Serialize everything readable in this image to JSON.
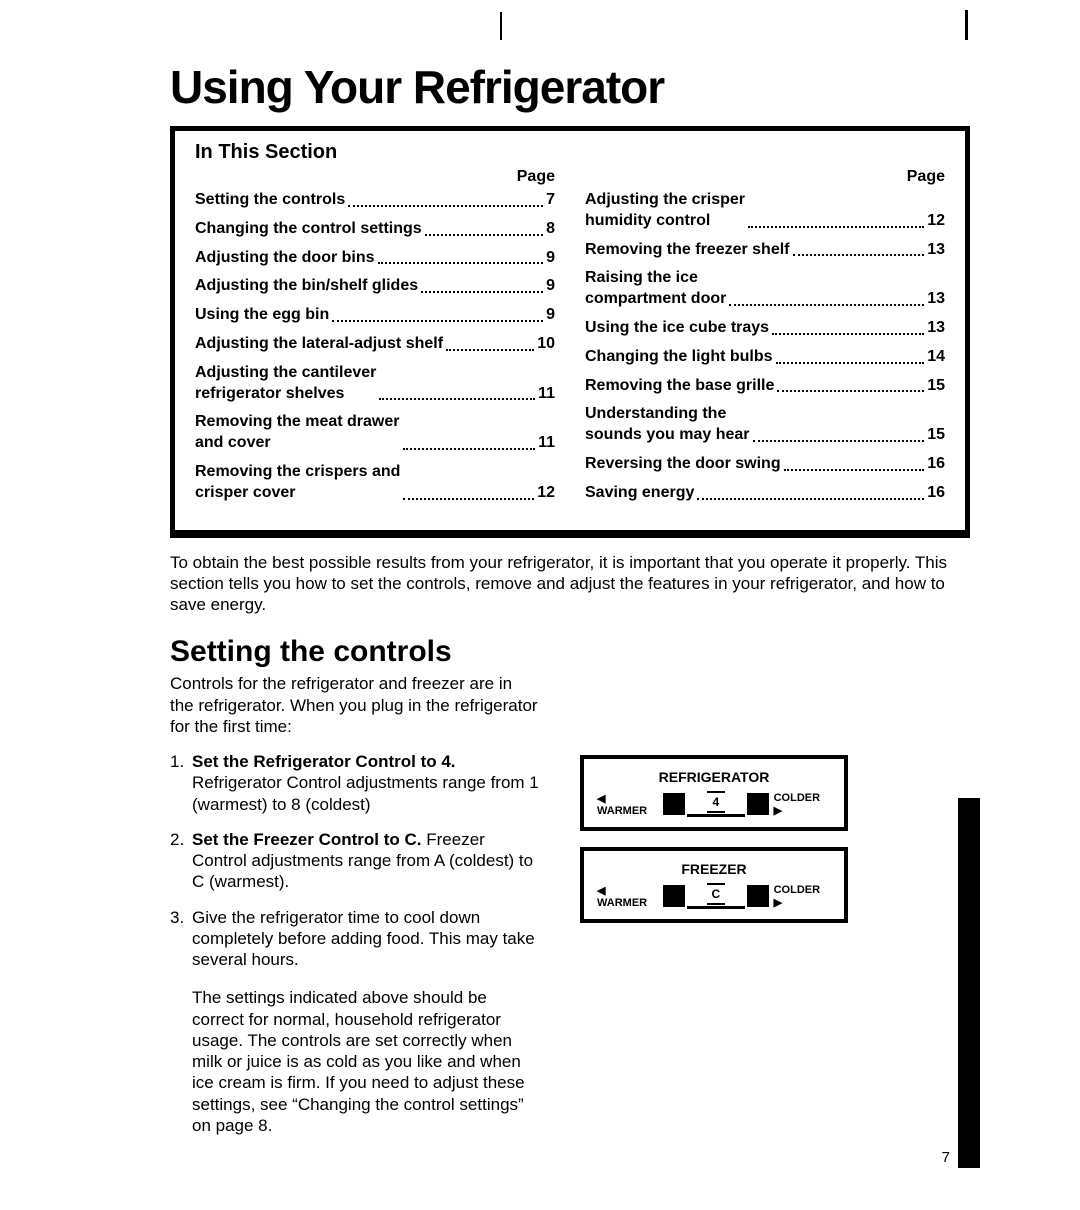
{
  "title": "Using Your Refrigerator",
  "toc": {
    "heading": "In This Section",
    "page_label": "Page",
    "left": [
      {
        "label": "Setting the controls",
        "page": "7"
      },
      {
        "label": "Changing the control settings",
        "page": "8"
      },
      {
        "label": "Adjusting the door bins",
        "page": "9"
      },
      {
        "label": "Adjusting the bin/shelf glides",
        "page": "9"
      },
      {
        "label": "Using the egg bin",
        "page": "9"
      },
      {
        "label": "Adjusting the lateral-adjust shelf",
        "page": "10"
      },
      {
        "label": "Adjusting the cantilever\nrefrigerator shelves",
        "page": "11"
      },
      {
        "label": "Removing the meat drawer\nand cover",
        "page": "11"
      },
      {
        "label": "Removing the crispers and\ncrisper cover",
        "page": "12"
      }
    ],
    "right": [
      {
        "label": "Adjusting the crisper\nhumidity control",
        "page": "12"
      },
      {
        "label": "Removing the freezer shelf",
        "page": "13"
      },
      {
        "label": "Raising the ice\ncompartment door",
        "page": "13"
      },
      {
        "label": "Using the ice cube trays",
        "page": "13"
      },
      {
        "label": "Changing the light bulbs",
        "page": "14"
      },
      {
        "label": "Removing the base grille",
        "page": "15"
      },
      {
        "label": "Understanding the\nsounds you may hear",
        "page": "15"
      },
      {
        "label": "Reversing the door swing",
        "page": "16"
      },
      {
        "label": "Saving energy",
        "page": "16"
      }
    ]
  },
  "intro": "To obtain the best possible results from your refrigerator, it is important that you operate it properly. This section tells you how to set the controls, remove and adjust the features in your refrigerator, and how to save energy.",
  "setting": {
    "heading": "Setting the controls",
    "lead": "Controls for the refrigerator and freezer are in the refrigerator. When you plug in the refrigerator for the first time:",
    "step1_num": "1.",
    "step1_title": "Set the Refrigerator Control to 4.",
    "step1_body": "Refrigerator Control adjustments range from 1 (warmest) to 8 (coldest)",
    "step2_num": "2.",
    "step2_title": "Set the Freezer Control to C.",
    "step2_body": "Freezer Control adjustments range from A (coldest) to C (warmest).",
    "step3_num": "3.",
    "step3_body": "Give the refrigerator time to cool down completely before adding food. This may take several hours.",
    "step3_cont": "The settings indicated above should be correct for normal, household refrigerator usage. The controls are set correctly when milk or juice is as cold as you like and when ice cream is firm. If you need to adjust these settings, see “Changing the control settings” on page 8."
  },
  "diagram": {
    "refrigerator": {
      "title": "REFRIGERATOR",
      "warmer": "◀ WARMER",
      "value": "4",
      "colder": "COLDER ▶"
    },
    "freezer": {
      "title": "FREEZER",
      "warmer": "◀ WARMER",
      "value": "C",
      "colder": "COLDER ▶"
    }
  },
  "page_number": "7"
}
